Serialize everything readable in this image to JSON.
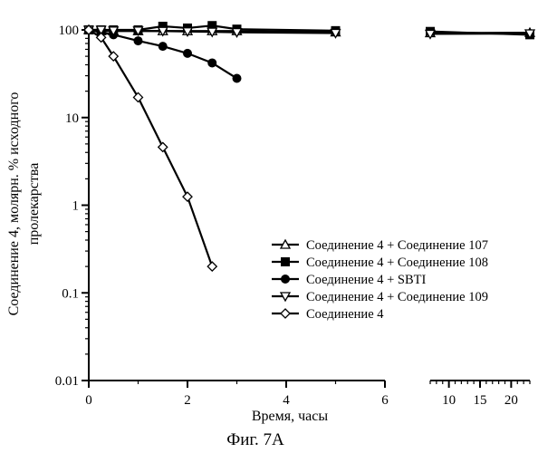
{
  "chart_data": {
    "type": "line",
    "y_scale": "log",
    "ylim": [
      0.01,
      100
    ],
    "y_ticks": [
      0.01,
      0.1,
      1,
      10,
      100
    ],
    "y_tick_labels": [
      "0.01",
      "0.1",
      "1",
      "10",
      "100"
    ],
    "ylabel_line1": "Соединение 4, молярн. % исходного",
    "ylabel_line2": "пролекарства",
    "xlabel": "Время, часы",
    "x_segments": [
      {
        "range": [
          0,
          6
        ],
        "ticks": [
          0,
          2,
          4,
          6
        ],
        "tick_labels": [
          "0",
          "2",
          "4",
          "6"
        ]
      },
      {
        "range": [
          7,
          23
        ],
        "ticks": [
          10,
          15,
          20
        ],
        "tick_labels": [
          "10",
          "15",
          "20"
        ]
      }
    ],
    "caption": "Фиг. 7А",
    "legend_position": "lower-right",
    "series": [
      {
        "name": "Соединение 4 + Соединение 107",
        "marker": "triangle-up",
        "color": "#000000",
        "x": [
          0,
          0.25,
          0.5,
          1,
          1.5,
          2,
          2.5,
          3,
          5,
          7,
          23
        ],
        "y": [
          100,
          97,
          97,
          97,
          97,
          97,
          97,
          97,
          94,
          92,
          93
        ]
      },
      {
        "name": "Соединение 4 + Соединение 108",
        "marker": "square",
        "color": "#000000",
        "x": [
          0,
          0.25,
          0.5,
          1,
          1.5,
          2,
          2.5,
          3,
          5,
          7,
          23
        ],
        "y": [
          100,
          100,
          100,
          100,
          110,
          105,
          112,
          102,
          98,
          96,
          88
        ]
      },
      {
        "name": "Соединение 4 + SBTI",
        "marker": "circle",
        "color": "#000000",
        "x": [
          0,
          0.5,
          1,
          1.5,
          2,
          2.5,
          3
        ],
        "y": [
          100,
          88,
          75,
          65,
          54,
          42,
          28
        ]
      },
      {
        "name": "Соединение 4 + Соединение 109",
        "marker": "triangle-down",
        "color": "#000000",
        "x": [
          0,
          0.25,
          0.5,
          1,
          1.5,
          2,
          2.5,
          3,
          5,
          7,
          23
        ],
        "y": [
          100,
          100,
          98,
          98,
          97,
          96,
          95,
          94,
          92,
          90,
          91
        ]
      },
      {
        "name": "Соединение 4",
        "marker": "diamond",
        "color": "#000000",
        "x": [
          0,
          0.25,
          0.5,
          1,
          1.5,
          2,
          2.5
        ],
        "y": [
          100,
          82,
          50,
          17,
          4.6,
          1.25,
          0.2
        ]
      }
    ]
  }
}
